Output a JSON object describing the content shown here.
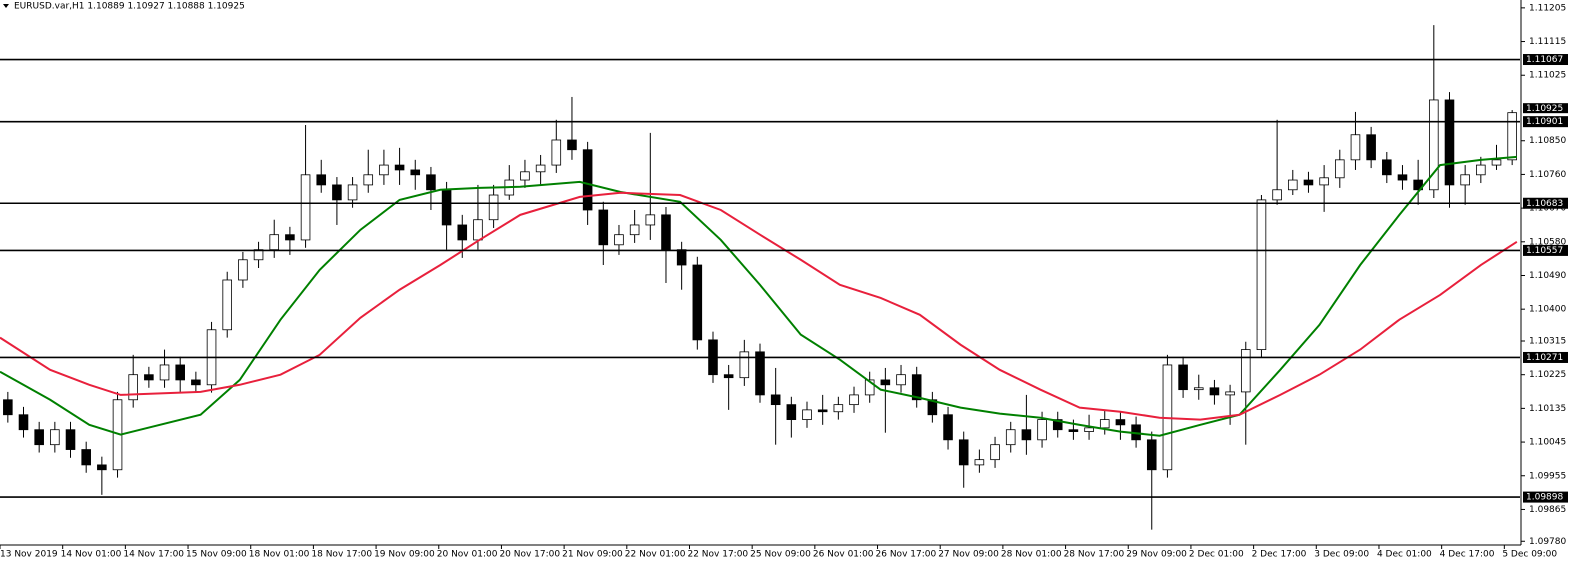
{
  "chart_data": {
    "type": "candlestick",
    "title": "EURUSD.var,H1  1.10889 1.10927 1.10888 1.10925",
    "up_color": "#ffffff",
    "down_color": "#000000",
    "wick_color": "#000000",
    "xlim": [
      0,
      97
    ],
    "xticks": [
      {
        "value": 0,
        "label": "13 Nov 2019"
      },
      {
        "value": 4,
        "label": "14 Nov 01:00"
      },
      {
        "value": 8,
        "label": "14 Nov 17:00"
      },
      {
        "value": 12,
        "label": "15 Nov 09:00"
      },
      {
        "value": 16,
        "label": "18 Nov 01:00"
      },
      {
        "value": 20,
        "label": "18 Nov 17:00"
      },
      {
        "value": 24,
        "label": "19 Nov 09:00"
      },
      {
        "value": 28,
        "label": "20 Nov 01:00"
      },
      {
        "value": 32,
        "label": "20 Nov 17:00"
      },
      {
        "value": 36,
        "label": "21 Nov 09:00"
      },
      {
        "value": 40,
        "label": "22 Nov 01:00"
      },
      {
        "value": 44,
        "label": "22 Nov 17:00"
      },
      {
        "value": 48,
        "label": "25 Nov 09:00"
      },
      {
        "value": 52,
        "label": "26 Nov 01:00"
      },
      {
        "value": 56,
        "label": "26 Nov 17:00"
      },
      {
        "value": 60,
        "label": "27 Nov 09:00"
      },
      {
        "value": 64,
        "label": "28 Nov 01:00"
      },
      {
        "value": 68,
        "label": "28 Nov 17:00"
      },
      {
        "value": 72,
        "label": "29 Nov 09:00"
      },
      {
        "value": 76,
        "label": "2 Dec 01:00"
      },
      {
        "value": 80,
        "label": "2 Dec 17:00"
      },
      {
        "value": 84,
        "label": "3 Dec 09:00"
      },
      {
        "value": 88,
        "label": "4 Dec 01:00"
      },
      {
        "value": 92,
        "label": "4 Dec 17:00"
      },
      {
        "value": 96,
        "label": "5 Dec 09:00"
      }
    ],
    "ylim": [
      1.0977,
      1.11226
    ],
    "yticks": [
      1.11205,
      1.11115,
      1.11025,
      {
        "value": 1.1085,
        "label": "1.10850"
      },
      {
        "value": 1.1076,
        "label": "1.10760"
      },
      {
        "value": 1.1067,
        "label": "1.10670"
      },
      {
        "value": 1.1058,
        "label": "1.10580"
      },
      {
        "value": 1.1049,
        "label": "1.10490"
      },
      {
        "value": 1.104,
        "label": "1.10400"
      },
      1.10315,
      1.10225,
      1.10135,
      1.10045,
      1.09955,
      1.09865,
      {
        "value": 1.0978,
        "label": "1.09780"
      }
    ],
    "hlines": [
      1.11067,
      1.10901,
      1.10683,
      1.10557,
      1.10271,
      1.09898
    ],
    "candles": [
      [
        1.10158,
        1.10179,
        1.10097,
        1.10118
      ],
      [
        1.10118,
        1.10139,
        1.10057,
        1.10078
      ],
      [
        1.10078,
        1.10099,
        1.10017,
        1.10038
      ],
      [
        1.10038,
        1.10099,
        1.10017,
        1.10078
      ],
      [
        1.10078,
        1.10099,
        1.10003,
        1.10025
      ],
      [
        1.10025,
        1.10046,
        1.09963,
        1.09984
      ],
      [
        1.09984,
        1.10006,
        1.09904,
        1.09971
      ],
      [
        1.09971,
        1.10179,
        1.0995,
        1.10158
      ],
      [
        1.10158,
        1.10278,
        1.10137,
        1.10225
      ],
      [
        1.10225,
        1.10246,
        1.1019,
        1.10211
      ],
      [
        1.10211,
        1.10292,
        1.1019,
        1.10251
      ],
      [
        1.10251,
        1.10273,
        1.10179,
        1.10211
      ],
      [
        1.10211,
        1.10233,
        1.10177,
        1.10198
      ],
      [
        1.10198,
        1.10366,
        1.10177,
        1.10345
      ],
      [
        1.10345,
        1.105,
        1.10324,
        1.10478
      ],
      [
        1.10478,
        1.10553,
        1.10457,
        1.10532
      ],
      [
        1.10532,
        1.1058,
        1.1051,
        1.10559
      ],
      [
        1.10559,
        1.10639,
        1.10537,
        1.10599
      ],
      [
        1.10599,
        1.1062,
        1.10545,
        1.10585
      ],
      [
        1.10585,
        1.10892,
        1.10564,
        1.10759
      ],
      [
        1.10759,
        1.10799,
        1.10711,
        1.10732
      ],
      [
        1.10732,
        1.10753,
        1.10625,
        1.10692
      ],
      [
        1.10692,
        1.10753,
        1.10671,
        1.10732
      ],
      [
        1.10732,
        1.10826,
        1.10711,
        1.10759
      ],
      [
        1.10759,
        1.10826,
        1.10732,
        1.10785
      ],
      [
        1.10785,
        1.10831,
        1.10732,
        1.10772
      ],
      [
        1.10772,
        1.10799,
        1.10719,
        1.10759
      ],
      [
        1.10759,
        1.1078,
        1.10665,
        1.10719
      ],
      [
        1.10719,
        1.1074,
        1.10559,
        1.10625
      ],
      [
        1.10625,
        1.10652,
        1.10537,
        1.10585
      ],
      [
        1.10585,
        1.10732,
        1.10559,
        1.10639
      ],
      [
        1.10639,
        1.10732,
        1.10617,
        1.10705
      ],
      [
        1.10705,
        1.10785,
        1.10692,
        1.10745
      ],
      [
        1.10745,
        1.10799,
        1.10724,
        1.10767
      ],
      [
        1.10767,
        1.10812,
        1.10732,
        1.10785
      ],
      [
        1.10785,
        1.10906,
        1.10764,
        1.10852
      ],
      [
        1.10852,
        1.10967,
        1.10799,
        1.10826
      ],
      [
        1.10826,
        1.10847,
        1.10625,
        1.10665
      ],
      [
        1.10665,
        1.10687,
        1.10518,
        1.10572
      ],
      [
        1.10572,
        1.10625,
        1.10545,
        1.10599
      ],
      [
        1.10599,
        1.10665,
        1.10577,
        1.10625
      ],
      [
        1.10625,
        1.10871,
        1.10585,
        1.10652
      ],
      [
        1.10652,
        1.10673,
        1.1047,
        1.10559
      ],
      [
        1.10559,
        1.1058,
        1.10452,
        1.10518
      ],
      [
        1.10518,
        1.1054,
        1.10292,
        1.10318
      ],
      [
        1.10318,
        1.1034,
        1.10203,
        1.10225
      ],
      [
        1.10225,
        1.10251,
        1.10131,
        1.10217
      ],
      [
        1.10217,
        1.10318,
        1.10195,
        1.10286
      ],
      [
        1.10286,
        1.10308,
        1.1015,
        1.10171
      ],
      [
        1.10171,
        1.10243,
        1.10038,
        1.10145
      ],
      [
        1.10145,
        1.10166,
        1.10057,
        1.10105
      ],
      [
        1.10105,
        1.10153,
        1.10083,
        1.10131
      ],
      [
        1.10131,
        1.10171,
        1.10091,
        1.10126
      ],
      [
        1.10126,
        1.10166,
        1.10105,
        1.10145
      ],
      [
        1.10145,
        1.10193,
        1.10123,
        1.10171
      ],
      [
        1.10171,
        1.10233,
        1.1015,
        1.10211
      ],
      [
        1.10211,
        1.10243,
        1.1007,
        1.10198
      ],
      [
        1.10198,
        1.10251,
        1.10177,
        1.10225
      ],
      [
        1.10225,
        1.10246,
        1.10137,
        1.10158
      ],
      [
        1.10158,
        1.10179,
        1.10097,
        1.10118
      ],
      [
        1.10118,
        1.10139,
        1.10025,
        1.10051
      ],
      [
        1.10051,
        1.10073,
        1.09923,
        1.09984
      ],
      [
        1.09984,
        1.10025,
        1.09963,
        1.09998
      ],
      [
        1.09998,
        1.10059,
        1.09976,
        1.10038
      ],
      [
        1.10038,
        1.10099,
        1.10017,
        1.10078
      ],
      [
        1.10078,
        1.10171,
        1.10011,
        1.10051
      ],
      [
        1.10051,
        1.10126,
        1.1003,
        1.10105
      ],
      [
        1.10105,
        1.10126,
        1.10057,
        1.10078
      ],
      [
        1.10078,
        1.10105,
        1.10051,
        1.10073
      ],
      [
        1.10073,
        1.10118,
        1.10051,
        1.10083
      ],
      [
        1.10083,
        1.10131,
        1.10065,
        1.10105
      ],
      [
        1.10105,
        1.10126,
        1.10051,
        1.10091
      ],
      [
        1.10091,
        1.10113,
        1.1003,
        1.10051
      ],
      [
        1.10051,
        1.10073,
        1.09811,
        1.09971
      ],
      [
        1.09971,
        1.10278,
        1.0995,
        1.10251
      ],
      [
        1.10251,
        1.10273,
        1.10163,
        1.10185
      ],
      [
        1.10185,
        1.10225,
        1.10158,
        1.1019
      ],
      [
        1.1019,
        1.10211,
        1.10145,
        1.10171
      ],
      [
        1.10171,
        1.10198,
        1.10091,
        1.10179
      ],
      [
        1.10179,
        1.10313,
        1.10038,
        1.10292
      ],
      [
        1.10292,
        1.10705,
        1.1027,
        1.10692
      ],
      [
        1.10692,
        1.10906,
        1.10679,
        1.10719
      ],
      [
        1.10719,
        1.10772,
        1.10705,
        1.10745
      ],
      [
        1.10745,
        1.10767,
        1.10711,
        1.10732
      ],
      [
        1.10732,
        1.10785,
        1.1066,
        1.10751
      ],
      [
        1.10751,
        1.10826,
        1.10724,
        1.10799
      ],
      [
        1.10799,
        1.10927,
        1.10772,
        1.10866
      ],
      [
        1.10866,
        1.10887,
        1.10777,
        1.10799
      ],
      [
        1.10799,
        1.1082,
        1.10737,
        1.10759
      ],
      [
        1.10759,
        1.10785,
        1.10719,
        1.10745
      ],
      [
        1.10745,
        1.10799,
        1.10679,
        1.10719
      ],
      [
        1.10719,
        1.11159,
        1.10697,
        1.10959
      ],
      [
        1.10959,
        1.1098,
        1.10671,
        1.10732
      ],
      [
        1.10732,
        1.10785,
        1.10679,
        1.10759
      ],
      [
        1.10759,
        1.10807,
        1.10737,
        1.10785
      ],
      [
        1.10785,
        1.10839,
        1.10772,
        1.10799
      ],
      [
        1.10799,
        1.10932,
        1.10785,
        1.10925
      ]
    ],
    "x": [
      0,
      3.2,
      5.7,
      7.7,
      12.8,
      15.3,
      17.9,
      20.4,
      23,
      25.5,
      28.1,
      30.6,
      33.2,
      37,
      39.6,
      43.4,
      46,
      48.5,
      51.1,
      53.6,
      56.2,
      58.7,
      61.3,
      63.8,
      66.4,
      68.9,
      71.5,
      74,
      76.6,
      79.1,
      81.7,
      84.2,
      86.8,
      89.3,
      91.9,
      94.5,
      96.8
    ],
    "series": [
      {
        "color": "#008000",
        "values": [
          1.10233,
          1.10158,
          1.10091,
          1.10065,
          1.10118,
          1.10211,
          1.10372,
          1.10505,
          1.10612,
          1.10692,
          1.10719,
          1.10724,
          1.10727,
          1.1074,
          1.10713,
          1.10687,
          1.10585,
          1.10465,
          1.10332,
          1.10265,
          1.10185,
          1.10163,
          1.10137,
          1.10121,
          1.1011,
          1.10091,
          1.10073,
          1.10062,
          1.10091,
          1.10118,
          1.10238,
          1.10358,
          1.10518,
          1.10652,
          1.10785,
          1.10799,
          1.10807
        ]
      },
      {
        "color": "#e8203c",
        "values": [
          1.10324,
          1.10238,
          1.10198,
          1.10171,
          1.10179,
          1.10198,
          1.10225,
          1.10278,
          1.10377,
          1.10452,
          1.10518,
          1.10585,
          1.10652,
          1.107,
          1.10711,
          1.10705,
          1.10665,
          1.10599,
          1.10532,
          1.10465,
          1.1043,
          1.10385,
          1.10305,
          1.10238,
          1.10185,
          1.10137,
          1.10126,
          1.1011,
          1.10105,
          1.10118,
          1.10171,
          1.10225,
          1.10292,
          1.10372,
          1.10438,
          1.10518,
          1.1058
        ]
      }
    ]
  }
}
